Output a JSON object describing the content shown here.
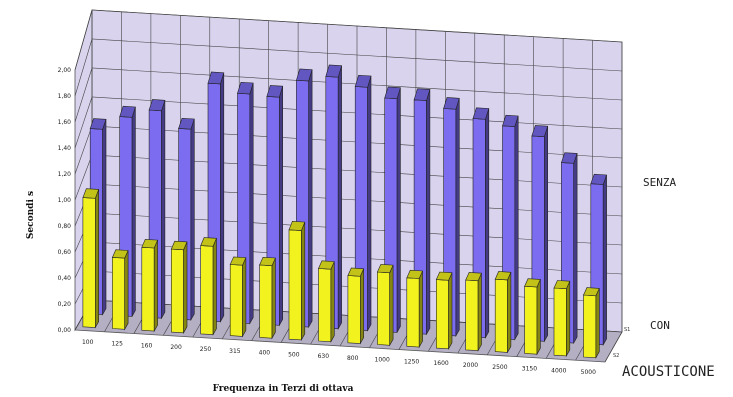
{
  "chart_data": {
    "type": "bar",
    "subtype": "3d-grouped-column",
    "xlabel": "Frequenza in Terzi di ottava",
    "ylabel": "Secondi s",
    "ylim": [
      0,
      2.0
    ],
    "yticks": [
      "0,00",
      "0,20",
      "0,40",
      "0,60",
      "0,80",
      "1,00",
      "1,20",
      "1,40",
      "1,60",
      "1,80",
      "2,00"
    ],
    "categories": [
      "100",
      "125",
      "160",
      "200",
      "250",
      "315",
      "400",
      "500",
      "630",
      "800",
      "1000",
      "1250",
      "1600",
      "2000",
      "2500",
      "3150",
      "4000",
      "5000"
    ],
    "series": [
      {
        "name": "CON ACOUSTICONE",
        "depth_label": "S2",
        "values": [
          0.98,
          0.54,
          0.63,
          0.63,
          0.67,
          0.54,
          0.55,
          0.83,
          0.55,
          0.51,
          0.55,
          0.52,
          0.52,
          0.53,
          0.55,
          0.51,
          0.51,
          0.47
        ],
        "color": "#f2f21e"
      },
      {
        "name": "SENZA",
        "depth_label": "S1",
        "values": [
          1.34,
          1.44,
          1.5,
          1.38,
          1.72,
          1.66,
          1.65,
          1.78,
          1.82,
          1.76,
          1.69,
          1.69,
          1.64,
          1.58,
          1.54,
          1.48,
          1.3,
          1.16
        ],
        "color": "#7b6cf0"
      }
    ],
    "grid": true,
    "series_labels": {
      "senza": "SENZA",
      "con": "CON",
      "acousticone": "ACOUSTICONE"
    },
    "wall_color": "#d9d3ee",
    "floor_color": "#b5afc4"
  }
}
